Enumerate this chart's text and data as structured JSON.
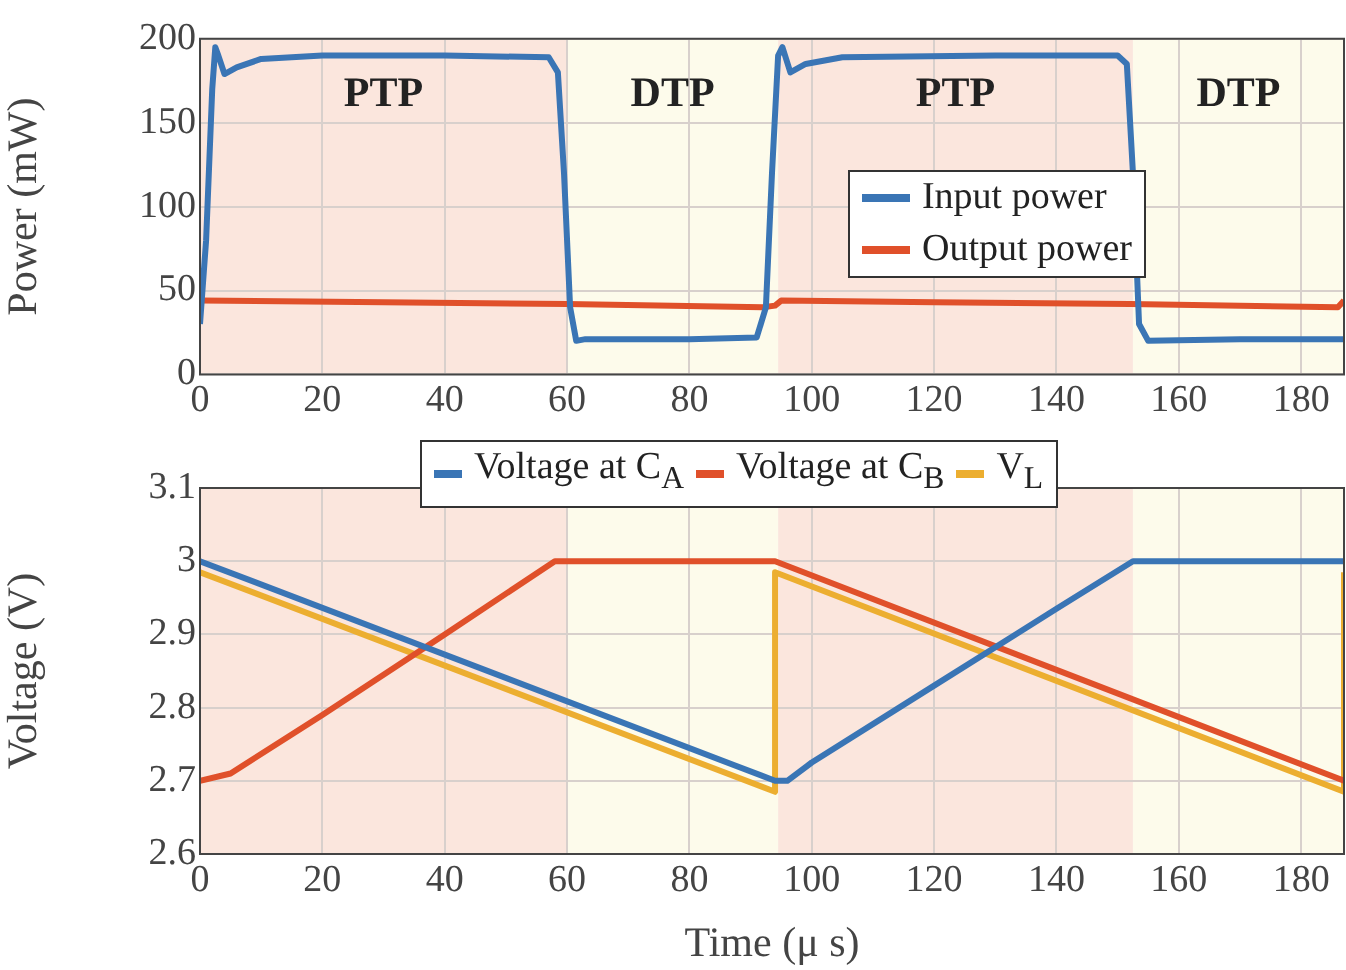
{
  "chart_data": [
    {
      "type": "line",
      "ylabel": "Power (mW)",
      "xlim": [
        0,
        187
      ],
      "xticks": [
        0,
        20,
        40,
        60,
        80,
        100,
        120,
        140,
        160,
        180
      ],
      "ylim": [
        0,
        200
      ],
      "yticks": [
        0,
        50,
        100,
        150,
        200
      ],
      "grid": true,
      "legend": "right",
      "tick_labels": "xy",
      "bands": [
        {
          "axis": "x",
          "from": 0,
          "to": 60,
          "label": "PTP",
          "color": "#fbe6dd"
        },
        {
          "axis": "x",
          "from": 60,
          "to": 94.5,
          "label": "DTP",
          "color": "#fdfbeb"
        },
        {
          "axis": "x",
          "from": 94.5,
          "to": 152.5,
          "label": "PTP",
          "color": "#fbe6dd"
        },
        {
          "axis": "x",
          "from": 152.5,
          "to": 187,
          "label": "DTP",
          "color": "#fdfbeb"
        }
      ],
      "series": [
        {
          "name": "Input power",
          "color": "#3a75b5",
          "x": [
            0,
            1,
            2,
            2.5,
            3,
            4,
            6,
            10,
            20,
            40,
            57,
            58.5,
            59.5,
            60.5,
            61.5,
            63,
            80,
            91,
            92.5,
            93.5,
            94.5,
            95.2,
            96.5,
            99,
            105,
            130,
            150,
            151.5,
            152.5,
            153.5,
            155,
            170,
            187
          ],
          "values": [
            30,
            80,
            170,
            195,
            190,
            179,
            183,
            188,
            190,
            190,
            189,
            180,
            120,
            40,
            20,
            21,
            21,
            22,
            40,
            120,
            190,
            195,
            180,
            185,
            189,
            190,
            190,
            185,
            120,
            30,
            20,
            21,
            21
          ]
        },
        {
          "name": "Output power",
          "color": "#e0502a",
          "x": [
            0,
            30,
            60,
            92,
            94,
            95,
            120,
            152,
            186,
            187
          ],
          "values": [
            44,
            43,
            42,
            40,
            41,
            44,
            43,
            42,
            40,
            44
          ]
        }
      ]
    },
    {
      "type": "line",
      "xlabel": "Time (μ s)",
      "ylabel": "Voltage (V)",
      "xlim": [
        0,
        187
      ],
      "xticks": [
        0,
        20,
        40,
        60,
        80,
        100,
        120,
        140,
        160,
        180
      ],
      "ylim": [
        2.6,
        3.1
      ],
      "yticks": [
        2.6,
        2.7,
        2.8,
        2.9,
        3,
        3.1
      ],
      "grid": true,
      "legend": "top",
      "bands": [
        {
          "axis": "x",
          "from": 0,
          "to": 60,
          "color": "#fbe6dd"
        },
        {
          "axis": "x",
          "from": 60,
          "to": 94.5,
          "color": "#fdfbeb"
        },
        {
          "axis": "x",
          "from": 94.5,
          "to": 152.5,
          "color": "#fbe6dd"
        },
        {
          "axis": "x",
          "from": 152.5,
          "to": 187,
          "color": "#fdfbeb"
        }
      ],
      "series": [
        {
          "name": "Voltage at C$_{A}$",
          "color": "#3a75b5",
          "x": [
            0,
            94,
            96,
            100,
            120,
            140,
            152.5,
            187
          ],
          "values": [
            3.0,
            2.7,
            2.7,
            2.725,
            2.83,
            2.935,
            3.0,
            3.0
          ]
        },
        {
          "name": "Voltage at C$_{B}$",
          "color": "#e0502a",
          "x": [
            0,
            5,
            20,
            40,
            58,
            94,
            187
          ],
          "values": [
            2.7,
            2.71,
            2.79,
            2.9,
            3.0,
            3.0,
            2.7
          ]
        },
        {
          "name": "V$_{L}$",
          "color": "#ecae30",
          "x": [
            0,
            94,
            94,
            187,
            187
          ],
          "values": [
            2.985,
            2.685,
            2.985,
            2.685,
            2.985
          ]
        }
      ]
    }
  ]
}
